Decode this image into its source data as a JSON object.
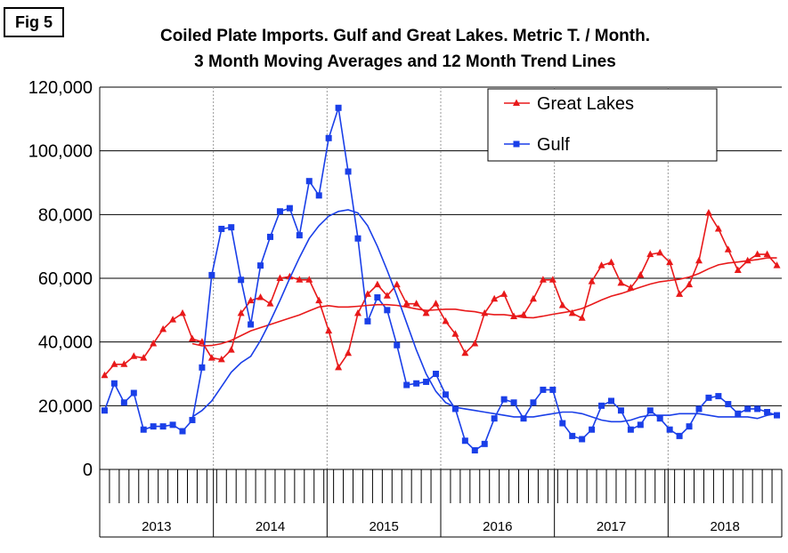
{
  "figure_label": "Fig 5",
  "chart_data": {
    "type": "line",
    "title": "Coiled Plate Imports. Gulf and Great Lakes. Metric T. / Month.",
    "subtitle": "3 Month Moving Averages and 12 Month Trend Lines",
    "xlabel": "",
    "ylabel": "",
    "ylim": [
      0,
      120000
    ],
    "yticks": [
      "0",
      "20,000",
      "40,000",
      "60,000",
      "80,000",
      "100,000",
      "120,000"
    ],
    "year_labels": [
      "2013",
      "2014",
      "2015",
      "2016",
      "2017",
      "2018"
    ],
    "x_start": "2013-01",
    "x_end": "2018-12",
    "grid": true,
    "legend_position": "top-right",
    "series": [
      {
        "name": "Great Lakes",
        "color": "#e8191a",
        "marker": "triangle",
        "values": [
          29500,
          33000,
          33000,
          35500,
          35000,
          39500,
          44000,
          47000,
          49000,
          41000,
          40000,
          35000,
          34500,
          37500,
          49000,
          53000,
          54000,
          52000,
          60000,
          60500,
          59500,
          59500,
          53000,
          43500,
          32000,
          36500,
          49000,
          55000,
          58000,
          54500,
          58000,
          52000,
          52000,
          49000,
          52000,
          46500,
          42500,
          36500,
          39500,
          49000,
          53500,
          55000,
          48000,
          48500,
          53500,
          59500,
          59500,
          51500,
          49000,
          47500,
          59000,
          64000,
          65000,
          58500,
          57000,
          61000,
          67500,
          68000,
          65000,
          55000,
          58000,
          65500,
          80500,
          75500,
          69000,
          62500,
          65500,
          67500,
          67500,
          64000
        ]
      },
      {
        "name": "Gulf",
        "color": "#1a3fe8",
        "marker": "square",
        "values": [
          18500,
          27000,
          21000,
          24000,
          12500,
          13500,
          13500,
          14000,
          12000,
          15500,
          32000,
          61000,
          75500,
          76000,
          59500,
          45500,
          64000,
          73000,
          81000,
          82000,
          73500,
          90500,
          86000,
          104000,
          113500,
          93500,
          72500,
          46500,
          54000,
          50000,
          39000,
          26500,
          27000,
          27500,
          30000,
          23500,
          19000,
          9000,
          6000,
          8000,
          16000,
          22000,
          21000,
          16000,
          21000,
          25000,
          25000,
          14500,
          10500,
          9500,
          12500,
          20000,
          21500,
          18500,
          12500,
          14000,
          18500,
          16000,
          12500,
          10500,
          13500,
          19000,
          22500,
          23000,
          20500,
          17500,
          19000,
          19000,
          18000,
          17000
        ]
      },
      {
        "name": "",
        "color": "#e8191a",
        "marker": "none",
        "values": [
          null,
          null,
          null,
          null,
          null,
          null,
          null,
          null,
          null,
          39500,
          38800,
          38900,
          39500,
          40500,
          42000,
          43500,
          44500,
          45500,
          46500,
          47500,
          48500,
          49800,
          51000,
          51400,
          51000,
          51000,
          51200,
          51500,
          51700,
          51700,
          51500,
          51000,
          50400,
          49900,
          50100,
          50300,
          50300,
          49800,
          49500,
          48900,
          48600,
          48600,
          48200,
          47700,
          47600,
          48100,
          48700,
          49200,
          49700,
          50500,
          51800,
          53200,
          54400,
          55200,
          56200,
          57200,
          58200,
          58900,
          59300,
          59700,
          60400,
          61500,
          63000,
          64200,
          64800,
          65100,
          65500,
          65900,
          66400,
          66400
        ]
      },
      {
        "name": "",
        "color": "#1a3fe8",
        "marker": "none",
        "values": [
          null,
          null,
          null,
          null,
          null,
          null,
          null,
          null,
          null,
          16500,
          18500,
          21500,
          26000,
          30500,
          33500,
          35500,
          40500,
          46500,
          53000,
          60000,
          66500,
          72500,
          76500,
          79500,
          81000,
          81500,
          80500,
          76500,
          70000,
          62500,
          54500,
          46000,
          37500,
          30000,
          24500,
          21000,
          19500,
          19000,
          18500,
          18000,
          17500,
          17000,
          16500,
          16500,
          16500,
          17000,
          17500,
          18000,
          18000,
          17500,
          16500,
          15500,
          15000,
          15000,
          15500,
          16500,
          17000,
          17000,
          17000,
          17500,
          17500,
          17500,
          17000,
          16500,
          16500,
          16500,
          16500,
          16000,
          17000,
          17500
        ]
      }
    ]
  }
}
